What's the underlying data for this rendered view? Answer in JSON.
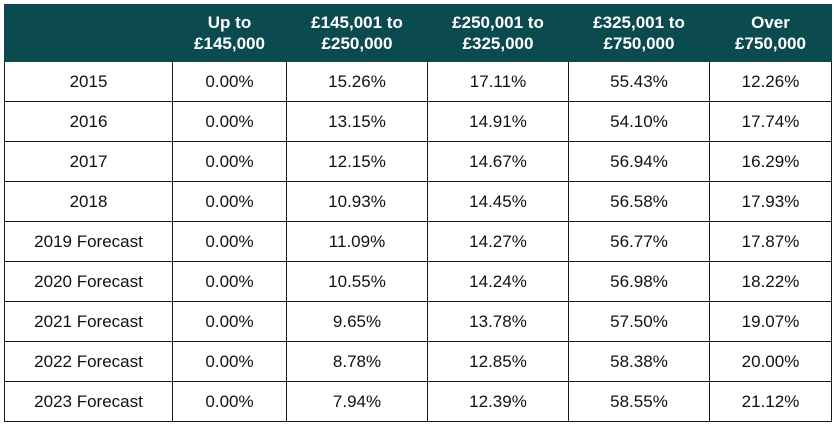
{
  "table": {
    "headers": [
      "",
      "Up to £145,000",
      "£145,001 to £250,000",
      "£250,001 to £325,000",
      "£325,001 to £750,000",
      "Over £750,000"
    ],
    "rows": [
      [
        "2015",
        "0.00%",
        "15.26%",
        "17.11%",
        "55.43%",
        "12.26%"
      ],
      [
        "2016",
        "0.00%",
        "13.15%",
        "14.91%",
        "54.10%",
        "17.74%"
      ],
      [
        "2017",
        "0.00%",
        "12.15%",
        "14.67%",
        "56.94%",
        "16.29%"
      ],
      [
        "2018",
        "0.00%",
        "10.93%",
        "14.45%",
        "56.58%",
        "17.93%"
      ],
      [
        "2019 Forecast",
        "0.00%",
        "11.09%",
        "14.27%",
        "56.77%",
        "17.87%"
      ],
      [
        "2020 Forecast",
        "0.00%",
        "10.55%",
        "14.24%",
        "56.98%",
        "18.22%"
      ],
      [
        "2021 Forecast",
        "0.00%",
        "9.65%",
        "13.78%",
        "57.50%",
        "19.07%"
      ],
      [
        "2022 Forecast",
        "0.00%",
        "8.78%",
        "12.85%",
        "58.38%",
        "20.00%"
      ],
      [
        "2023 Forecast",
        "0.00%",
        "7.94%",
        "12.39%",
        "58.55%",
        "21.12%"
      ]
    ]
  },
  "colors": {
    "header_bg": "#0b4a4f",
    "header_text": "#ffffff",
    "border": "#1a1a1a"
  }
}
